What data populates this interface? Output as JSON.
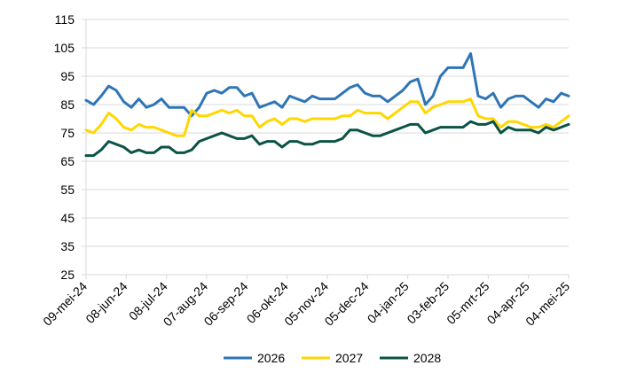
{
  "chart_data": {
    "type": "line",
    "title": "",
    "xlabel": "",
    "ylabel": "",
    "ylim": [
      25,
      115
    ],
    "y_ticks": [
      25,
      35,
      45,
      55,
      65,
      75,
      85,
      95,
      105,
      115
    ],
    "x_tick_labels": [
      "09-mei-24",
      "08-jun-24",
      "08-jul-24",
      "07-aug-24",
      "06-sep-24",
      "06-okt-24",
      "05-nov-24",
      "05-dec-24",
      "04-jan-25",
      "03-feb-25",
      "05-mrt-25",
      "04-apr-25",
      "04-mei-25"
    ],
    "grid": "horizontal",
    "legend": "bottom",
    "series": [
      {
        "name": "2026",
        "color": "#2E75B6",
        "values": [
          86.5,
          85,
          88,
          91.5,
          90,
          86,
          84,
          87,
          84,
          85,
          87,
          84,
          84,
          84,
          81,
          84,
          89,
          90,
          89,
          91,
          91,
          88,
          89,
          84,
          85,
          86,
          84,
          88,
          87,
          86,
          88,
          87,
          87,
          87,
          89,
          91,
          92,
          89,
          88,
          88,
          86,
          88,
          90,
          93,
          94,
          85,
          88,
          95,
          98,
          98,
          98,
          103,
          88,
          87,
          89,
          84,
          87,
          88,
          88,
          86,
          84,
          87,
          86,
          89,
          88
        ]
      },
      {
        "name": "2027",
        "color": "#FFD700",
        "values": [
          76,
          75,
          78,
          82,
          80,
          77,
          76,
          78,
          77,
          77,
          76,
          75,
          74,
          74,
          83,
          81,
          81,
          82,
          83,
          82,
          83,
          81,
          81,
          77,
          79,
          80,
          78,
          80,
          80,
          79,
          80,
          80,
          80,
          80,
          81,
          81,
          83,
          82,
          82,
          82,
          80,
          82,
          84,
          86,
          86,
          82,
          84,
          85,
          86,
          86,
          86,
          87,
          81,
          80,
          80,
          77,
          79,
          79,
          78,
          77,
          77,
          78,
          77,
          79,
          81
        ]
      },
      {
        "name": "2028",
        "color": "#0B5345",
        "values": [
          67,
          67,
          69,
          72,
          71,
          70,
          68,
          69,
          68,
          68,
          70,
          70,
          68,
          68,
          69,
          72,
          73,
          74,
          75,
          74,
          73,
          73,
          74,
          71,
          72,
          72,
          70,
          72,
          72,
          71,
          71,
          72,
          72,
          72,
          73,
          76,
          76,
          75,
          74,
          74,
          75,
          76,
          77,
          78,
          78,
          75,
          76,
          77,
          77,
          77,
          77,
          79,
          78,
          78,
          79,
          75,
          77,
          76,
          76,
          76,
          75,
          77,
          76,
          77,
          78
        ]
      }
    ]
  }
}
